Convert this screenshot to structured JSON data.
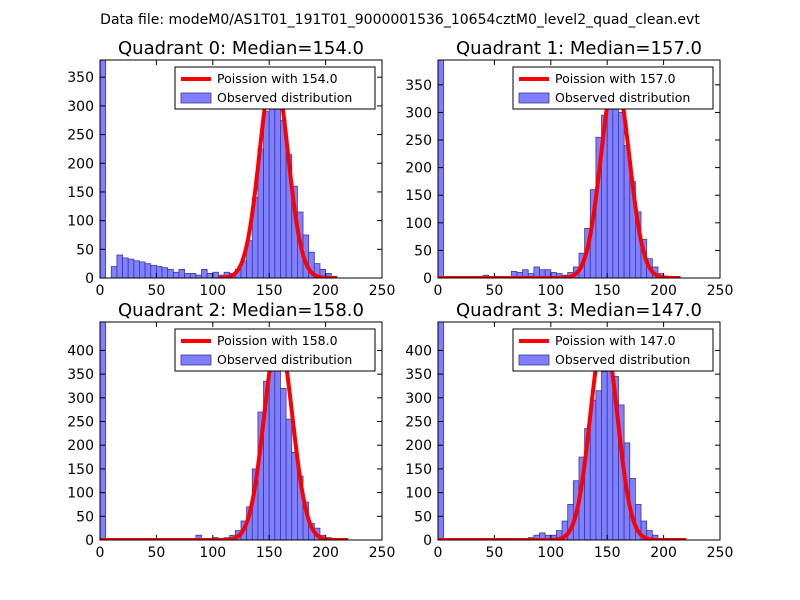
{
  "suptitle": "Data file: modeM0/AS1T01_191T01_9000001536_10654cztM0_level2_quad_clean.evt",
  "colors": {
    "bar_fill": "#7f7fff",
    "bar_stroke": "#3a3a9a",
    "poisson_line": "#ff0000",
    "axes": "#000000",
    "legend_border": "#000000"
  },
  "chart_data": [
    {
      "type": "bar",
      "title": "Quadrant 0: Median=154.0",
      "median": 154.0,
      "xlim": [
        0,
        250
      ],
      "ylim": [
        0,
        380
      ],
      "xticks": [
        0,
        50,
        100,
        150,
        200,
        250
      ],
      "yticks": [
        0,
        50,
        100,
        150,
        200,
        250,
        300,
        350
      ],
      "legend": {
        "position": "top-right",
        "line_label": "Poission with 154.0",
        "bar_label": "Observed distribution"
      },
      "bin_width": 5,
      "bins": [
        [
          0,
          380
        ],
        [
          10,
          20
        ],
        [
          15,
          40
        ],
        [
          20,
          35
        ],
        [
          25,
          33
        ],
        [
          30,
          30
        ],
        [
          35,
          28
        ],
        [
          40,
          25
        ],
        [
          45,
          22
        ],
        [
          50,
          20
        ],
        [
          55,
          18
        ],
        [
          60,
          15
        ],
        [
          65,
          10
        ],
        [
          70,
          15
        ],
        [
          75,
          8
        ],
        [
          80,
          8
        ],
        [
          85,
          5
        ],
        [
          90,
          15
        ],
        [
          95,
          8
        ],
        [
          100,
          10
        ],
        [
          105,
          5
        ],
        [
          110,
          10
        ],
        [
          115,
          8
        ],
        [
          120,
          15
        ],
        [
          125,
          30
        ],
        [
          130,
          65
        ],
        [
          135,
          140
        ],
        [
          140,
          225
        ],
        [
          145,
          290
        ],
        [
          150,
          345
        ],
        [
          155,
          330
        ],
        [
          160,
          275
        ],
        [
          165,
          215
        ],
        [
          170,
          160
        ],
        [
          175,
          115
        ],
        [
          180,
          75
        ],
        [
          185,
          45
        ],
        [
          190,
          25
        ],
        [
          195,
          15
        ],
        [
          200,
          8
        ],
        [
          205,
          3
        ]
      ],
      "poisson": {
        "mean": 154.0,
        "peak": 365,
        "xmin": 105,
        "xmax": 210
      }
    },
    {
      "type": "bar",
      "title": "Quadrant 1: Median=157.0",
      "median": 157.0,
      "xlim": [
        0,
        250
      ],
      "ylim": [
        0,
        395
      ],
      "xticks": [
        0,
        50,
        100,
        150,
        200,
        250
      ],
      "yticks": [
        0,
        50,
        100,
        150,
        200,
        250,
        300,
        350
      ],
      "legend": {
        "position": "top-right",
        "line_label": "Poission with 157.0",
        "bar_label": "Observed distribution"
      },
      "bin_width": 5,
      "bins": [
        [
          0,
          395
        ],
        [
          40,
          5
        ],
        [
          65,
          12
        ],
        [
          70,
          10
        ],
        [
          75,
          15
        ],
        [
          80,
          8
        ],
        [
          85,
          20
        ],
        [
          90,
          15
        ],
        [
          95,
          15
        ],
        [
          100,
          10
        ],
        [
          105,
          8
        ],
        [
          110,
          5
        ],
        [
          115,
          10
        ],
        [
          120,
          20
        ],
        [
          125,
          45
        ],
        [
          130,
          90
        ],
        [
          135,
          160
        ],
        [
          140,
          255
        ],
        [
          145,
          295
        ],
        [
          150,
          340
        ],
        [
          155,
          375
        ],
        [
          160,
          300
        ],
        [
          165,
          240
        ],
        [
          170,
          175
        ],
        [
          175,
          120
        ],
        [
          180,
          70
        ],
        [
          185,
          35
        ],
        [
          190,
          20
        ],
        [
          195,
          8
        ],
        [
          200,
          3
        ]
      ],
      "poisson": {
        "mean": 157.0,
        "peak": 365,
        "xmin": 0,
        "xmax": 215
      }
    },
    {
      "type": "bar",
      "title": "Quadrant 2: Median=158.0",
      "median": 158.0,
      "xlim": [
        0,
        250
      ],
      "ylim": [
        0,
        460
      ],
      "xticks": [
        0,
        50,
        100,
        150,
        200,
        250
      ],
      "yticks": [
        0,
        50,
        100,
        150,
        200,
        250,
        300,
        350,
        400
      ],
      "legend": {
        "position": "top-right",
        "line_label": "Poission with 158.0",
        "bar_label": "Observed distribution"
      },
      "bin_width": 5,
      "bins": [
        [
          0,
          460
        ],
        [
          85,
          10
        ],
        [
          100,
          5
        ],
        [
          110,
          5
        ],
        [
          115,
          10
        ],
        [
          120,
          20
        ],
        [
          125,
          40
        ],
        [
          130,
          70
        ],
        [
          135,
          150
        ],
        [
          140,
          270
        ],
        [
          145,
          335
        ],
        [
          150,
          380
        ],
        [
          155,
          365
        ],
        [
          160,
          320
        ],
        [
          165,
          255
        ],
        [
          170,
          185
        ],
        [
          175,
          135
        ],
        [
          180,
          80
        ],
        [
          185,
          35
        ],
        [
          190,
          25
        ],
        [
          195,
          10
        ],
        [
          200,
          5
        ]
      ],
      "poisson": {
        "mean": 158.0,
        "peak": 430,
        "xmin": 0,
        "xmax": 220
      }
    },
    {
      "type": "bar",
      "title": "Quadrant 3: Median=147.0",
      "median": 147.0,
      "xlim": [
        0,
        250
      ],
      "ylim": [
        0,
        460
      ],
      "xticks": [
        0,
        50,
        100,
        150,
        200,
        250
      ],
      "yticks": [
        0,
        50,
        100,
        150,
        200,
        250,
        300,
        350,
        400
      ],
      "legend": {
        "position": "top-right",
        "line_label": "Poission with 147.0",
        "bar_label": "Observed distribution"
      },
      "bin_width": 5,
      "bins": [
        [
          0,
          460
        ],
        [
          80,
          5
        ],
        [
          85,
          10
        ],
        [
          90,
          15
        ],
        [
          95,
          10
        ],
        [
          100,
          10
        ],
        [
          105,
          20
        ],
        [
          110,
          40
        ],
        [
          115,
          75
        ],
        [
          120,
          125
        ],
        [
          125,
          175
        ],
        [
          130,
          235
        ],
        [
          135,
          295
        ],
        [
          140,
          315
        ],
        [
          145,
          355
        ],
        [
          150,
          365
        ],
        [
          155,
          345
        ],
        [
          160,
          285
        ],
        [
          165,
          205
        ],
        [
          170,
          130
        ],
        [
          175,
          75
        ],
        [
          180,
          40
        ],
        [
          185,
          20
        ],
        [
          190,
          10
        ]
      ],
      "poisson": {
        "mean": 147.0,
        "peak": 430,
        "xmin": 0,
        "xmax": 220
      }
    }
  ]
}
